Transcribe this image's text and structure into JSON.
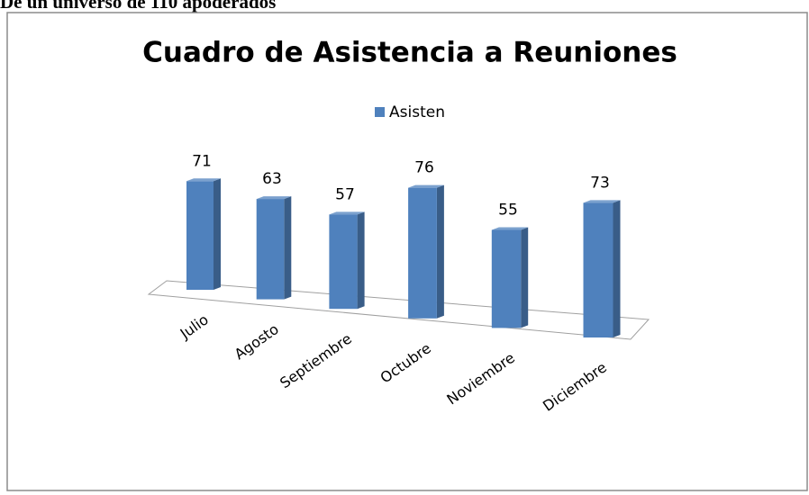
{
  "header": {
    "title": "De un universo de 110 apoderados"
  },
  "chart_data": {
    "type": "bar3d",
    "title": "Cuadro de Asistencia a Reuniones",
    "categories": [
      "Julio",
      "Agosto",
      "Septiembre",
      "Octubre",
      "Noviembre",
      "Diciembre"
    ],
    "series": [
      {
        "name": "Asisten",
        "color": "#4f81bd",
        "values": [
          71,
          63,
          57,
          76,
          55,
          73
        ]
      }
    ],
    "legend": "top"
  }
}
